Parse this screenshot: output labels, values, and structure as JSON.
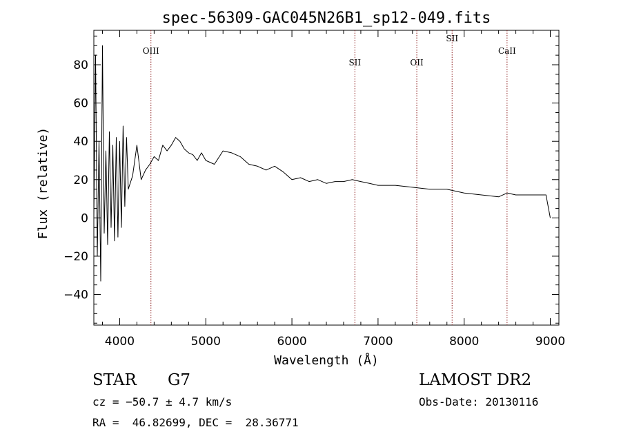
{
  "chart_data": {
    "type": "line",
    "title": "spec-56309-GAC045N26B1_sp12-049.fits",
    "xlabel": "Wavelength (Å)",
    "ylabel": "Flux (relative)",
    "xlim": [
      3700,
      9100
    ],
    "ylim": [
      -56,
      98
    ],
    "x_ticks": [
      4000,
      5000,
      6000,
      7000,
      8000,
      9000
    ],
    "x_tick_labels": [
      "4000",
      "5000",
      "6000",
      "7000",
      "8000",
      "9000"
    ],
    "y_ticks": [
      -40,
      -20,
      0,
      20,
      40,
      60,
      80
    ],
    "y_tick_labels": [
      "−40",
      "−20",
      "0",
      "20",
      "40",
      "60",
      "80"
    ],
    "grid": false,
    "series": [
      {
        "color": "#000000",
        "x": [
          3700,
          3720,
          3740,
          3760,
          3780,
          3800,
          3820,
          3840,
          3860,
          3880,
          3900,
          3920,
          3940,
          3960,
          3980,
          4000,
          4020,
          4040,
          4060,
          4080,
          4100,
          4150,
          4200,
          4250,
          4300,
          4350,
          4400,
          4450,
          4500,
          4550,
          4600,
          4650,
          4700,
          4750,
          4800,
          4850,
          4900,
          4950,
          5000,
          5100,
          5200,
          5300,
          5400,
          5500,
          5600,
          5700,
          5800,
          5900,
          6000,
          6100,
          6200,
          6300,
          6400,
          6500,
          6600,
          6700,
          6800,
          6900,
          7000,
          7200,
          7400,
          7600,
          7800,
          8000,
          8200,
          8400,
          8500,
          8600,
          8800,
          8950,
          9000
        ],
        "y": [
          0,
          85,
          -20,
          40,
          -33,
          90,
          -8,
          35,
          -14,
          45,
          -5,
          38,
          -12,
          42,
          -10,
          40,
          -5,
          48,
          6,
          42,
          15,
          22,
          38,
          20,
          25,
          28,
          32,
          30,
          38,
          35,
          38,
          42,
          40,
          36,
          34,
          33,
          30,
          34,
          30,
          28,
          35,
          34,
          32,
          28,
          27,
          25,
          27,
          24,
          20,
          21,
          19,
          20,
          18,
          19,
          19,
          20,
          19,
          18,
          17,
          17,
          16,
          15,
          15,
          13,
          12,
          11,
          13,
          12,
          12,
          12,
          0
        ]
      }
    ],
    "annotations": [
      {
        "label": "OIII",
        "x": 4363,
        "level": "low"
      },
      {
        "label": "SII",
        "x": 6731,
        "level": "mid"
      },
      {
        "label": "OII",
        "x": 7450,
        "level": "mid"
      },
      {
        "label": "SII",
        "x": 7860,
        "level": "high"
      },
      {
        "label": "CaII",
        "x": 8498,
        "level": "low"
      }
    ]
  },
  "info": {
    "object_class": "STAR",
    "subclass": "G7",
    "cz": "cz = −50.7 ± 4.7 km/s",
    "coords": "RA =  46.82699, DEC =  28.36771",
    "survey": "LAMOST DR2",
    "obs_date": "Obs-Date: 20130116"
  }
}
